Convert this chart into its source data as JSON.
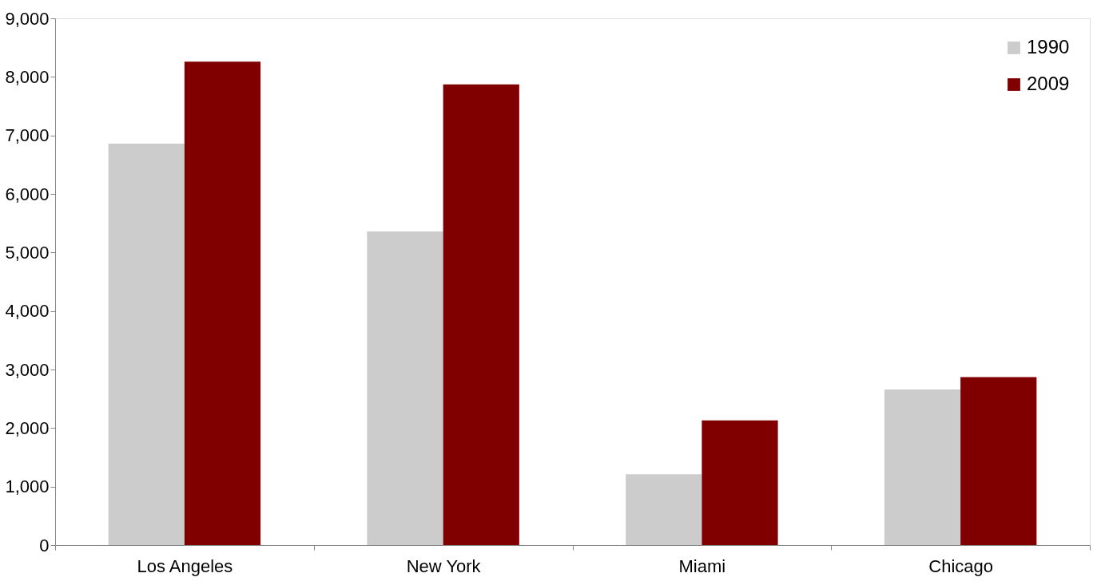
{
  "chart_data": {
    "type": "bar",
    "categories": [
      "Los Angeles",
      "New York",
      "Miami",
      "Chicago"
    ],
    "series": [
      {
        "name": "1990",
        "color": "#cccccc",
        "values": [
          6860,
          5360,
          1210,
          2660
        ]
      },
      {
        "name": "2009",
        "color": "#800000",
        "values": [
          8260,
          7870,
          2130,
          2870
        ]
      }
    ],
    "ylim": [
      0,
      9000
    ],
    "yticks": [
      0,
      {
        "value": 1000,
        "label": "1,000"
      },
      {
        "value": 2000,
        "label": "2,000"
      },
      {
        "value": 3000,
        "label": "3,000"
      },
      {
        "value": 4000,
        "label": "4,000"
      },
      {
        "value": 5000,
        "label": "5,000"
      },
      {
        "value": 6000,
        "label": "6,000"
      },
      {
        "value": 7000,
        "label": "7,000"
      },
      {
        "value": 8000,
        "label": "8,000"
      },
      {
        "value": 9000,
        "label": "9,000"
      }
    ],
    "grid": false,
    "legend": "top right"
  }
}
